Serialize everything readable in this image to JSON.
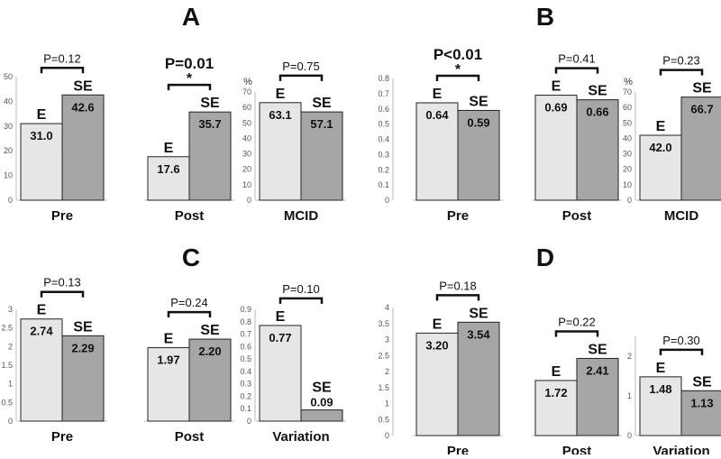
{
  "colors": {
    "E": "#e6e6e6",
    "SE": "#a6a6a6",
    "stroke": "#222222",
    "axis": "#bbbbbb"
  },
  "group_labels": [
    "E",
    "SE"
  ],
  "chart_data": [
    {
      "type": "bar",
      "panel": "A",
      "subcharts": [
        {
          "category": "Pre",
          "ylim": [
            0,
            50
          ],
          "ticks": [
            0,
            10,
            20,
            30,
            40,
            50
          ],
          "unit": "",
          "series": [
            {
              "name": "E",
              "value": 31.0,
              "label": "31.0"
            },
            {
              "name": "SE",
              "value": 42.6,
              "label": "42.6"
            }
          ],
          "p_value": "P=0.12",
          "significant": false,
          "star": ""
        },
        {
          "category": "Post",
          "ylim": [
            0,
            50
          ],
          "ticks": [],
          "unit": "",
          "series": [
            {
              "name": "E",
              "value": 17.6,
              "label": "17.6"
            },
            {
              "name": "SE",
              "value": 35.7,
              "label": "35.7"
            }
          ],
          "p_value": "P=0.01",
          "significant": true,
          "star": "*"
        },
        {
          "category": "MCID",
          "ylim": [
            0,
            70
          ],
          "ticks": [
            0,
            10,
            20,
            30,
            40,
            50,
            60,
            70
          ],
          "unit": "%",
          "series": [
            {
              "name": "E",
              "value": 63.1,
              "label": "63.1"
            },
            {
              "name": "SE",
              "value": 57.1,
              "label": "57.1"
            }
          ],
          "p_value": "P=0.75",
          "significant": false,
          "star": ""
        }
      ]
    },
    {
      "type": "bar",
      "panel": "B",
      "subcharts": [
        {
          "category": "Pre",
          "ylim": [
            0,
            0.8
          ],
          "ticks": [
            0,
            0.1,
            0.2,
            0.3,
            0.4,
            0.5,
            0.6,
            0.7,
            0.8
          ],
          "unit": "",
          "series": [
            {
              "name": "E",
              "value": 0.64,
              "label": "0.64"
            },
            {
              "name": "SE",
              "value": 0.59,
              "label": "0.59"
            }
          ],
          "p_value": "P<0.01",
          "significant": true,
          "star": "*"
        },
        {
          "category": "Post",
          "ylim": [
            0,
            0.8
          ],
          "ticks": [],
          "unit": "",
          "series": [
            {
              "name": "E",
              "value": 0.69,
              "label": "0.69"
            },
            {
              "name": "SE",
              "value": 0.66,
              "label": "0.66"
            }
          ],
          "p_value": "P=0.41",
          "significant": false,
          "star": ""
        },
        {
          "category": "MCID",
          "ylim": [
            0,
            70
          ],
          "ticks": [
            0,
            10,
            20,
            30,
            40,
            50,
            60,
            70
          ],
          "unit": "%",
          "series": [
            {
              "name": "E",
              "value": 42.0,
              "label": "42.0"
            },
            {
              "name": "SE",
              "value": 66.7,
              "label": "66.7"
            }
          ],
          "p_value": "P=0.23",
          "significant": false,
          "star": ""
        }
      ]
    },
    {
      "type": "bar",
      "panel": "C",
      "subcharts": [
        {
          "category": "Pre",
          "ylim": [
            0,
            3
          ],
          "ticks": [
            0,
            0.5,
            1,
            1.5,
            2,
            2.5,
            3
          ],
          "unit": "",
          "series": [
            {
              "name": "E",
              "value": 2.74,
              "label": "2.74"
            },
            {
              "name": "SE",
              "value": 2.29,
              "label": "2.29"
            }
          ],
          "p_value": "P=0.13",
          "significant": false,
          "star": ""
        },
        {
          "category": "Post",
          "ylim": [
            0,
            3
          ],
          "ticks": [],
          "unit": "",
          "series": [
            {
              "name": "E",
              "value": 1.97,
              "label": "1.97"
            },
            {
              "name": "SE",
              "value": 2.2,
              "label": "2.20"
            }
          ],
          "p_value": "P=0.24",
          "significant": false,
          "star": ""
        },
        {
          "category": "Variation",
          "ylim": [
            0,
            0.9
          ],
          "ticks": [
            0,
            0.1,
            0.2,
            0.3,
            0.4,
            0.5,
            0.6,
            0.7,
            0.8,
            0.9
          ],
          "unit": "",
          "series": [
            {
              "name": "E",
              "value": 0.77,
              "label": "0.77"
            },
            {
              "name": "SE",
              "value": 0.09,
              "label": "0.09"
            }
          ],
          "p_value": "P=0.10",
          "significant": false,
          "star": ""
        }
      ]
    },
    {
      "type": "bar",
      "panel": "D",
      "subcharts": [
        {
          "category": "Pre",
          "ylim": [
            0,
            4
          ],
          "ticks": [
            0,
            0.5,
            1,
            1.5,
            2,
            2.5,
            3,
            3.5,
            4
          ],
          "unit": "",
          "series": [
            {
              "name": "E",
              "value": 3.2,
              "label": "3.20"
            },
            {
              "name": "SE",
              "value": 3.54,
              "label": "3.54"
            }
          ],
          "p_value": "P=0.18",
          "significant": false,
          "star": ""
        },
        {
          "category": "Post",
          "ylim": [
            0,
            4
          ],
          "ticks": [],
          "unit": "",
          "series": [
            {
              "name": "E",
              "value": 1.72,
              "label": "1.72"
            },
            {
              "name": "SE",
              "value": 2.41,
              "label": "2.41"
            }
          ],
          "p_value": "P=0.22",
          "significant": false,
          "star": ""
        },
        {
          "category": "Variation",
          "ylim": [
            0,
            2.5
          ],
          "ticks": [
            0,
            1,
            2
          ],
          "unit": "",
          "series": [
            {
              "name": "E",
              "value": 1.48,
              "label": "1.48"
            },
            {
              "name": "SE",
              "value": 1.13,
              "label": "1.13"
            }
          ],
          "p_value": "P=0.30",
          "significant": false,
          "star": ""
        }
      ]
    }
  ]
}
